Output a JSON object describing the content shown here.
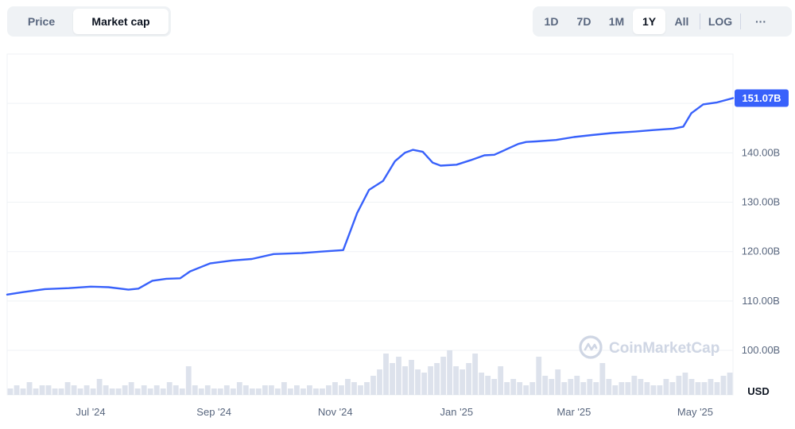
{
  "toolbar": {
    "left_tabs": [
      {
        "label": "Price",
        "active": false
      },
      {
        "label": "Market cap",
        "active": true
      }
    ],
    "range_tabs": [
      {
        "label": "1D",
        "active": false
      },
      {
        "label": "7D",
        "active": false
      },
      {
        "label": "1M",
        "active": false
      },
      {
        "label": "1Y",
        "active": true
      },
      {
        "label": "All",
        "active": false
      }
    ],
    "log_label": "LOG",
    "more_label": "···"
  },
  "watermark": {
    "text": "CoinMarketCap",
    "icon": "coinmarketcap-logo-icon"
  },
  "colors": {
    "line": "#3861fb",
    "volume": "#cfd6e4",
    "grid": "#eff2f5",
    "tag": "#3861fb"
  },
  "chart_data": {
    "type": "line",
    "currency": "USD",
    "current_value_label": "151.07B",
    "ylim": [
      91,
      160
    ],
    "y_ticks": [
      100,
      110,
      120,
      130,
      140
    ],
    "y_tick_labels": [
      "100.00B",
      "110.00B",
      "120.00B",
      "130.00B",
      "140.00B"
    ],
    "x_ticks": [
      "2024-07-01",
      "2024-09-01",
      "2024-11-01",
      "2025-01-01",
      "2025-03-01",
      "2025-05-01"
    ],
    "x_tick_labels": [
      "Jul '24",
      "Sep '24",
      "Nov '24",
      "Jan '25",
      "Mar '25",
      "May '25"
    ],
    "x_range": [
      "2024-05-20",
      "2025-05-20"
    ],
    "grid": true,
    "series": [
      {
        "x": [
          "2024-05-20",
          "2024-05-28",
          "2024-06-08",
          "2024-06-20",
          "2024-07-01",
          "2024-07-10",
          "2024-07-20",
          "2024-07-25",
          "2024-08-01",
          "2024-08-08",
          "2024-08-15",
          "2024-08-20",
          "2024-08-30",
          "2024-09-10",
          "2024-09-20",
          "2024-10-01",
          "2024-10-15",
          "2024-10-25",
          "2024-11-05",
          "2024-11-08",
          "2024-11-12",
          "2024-11-18",
          "2024-11-25",
          "2024-12-01",
          "2024-12-06",
          "2024-12-10",
          "2024-12-15",
          "2024-12-20",
          "2024-12-24",
          "2025-01-01",
          "2025-01-08",
          "2025-01-15",
          "2025-01-20",
          "2025-02-01",
          "2025-02-05",
          "2025-02-10",
          "2025-02-20",
          "2025-03-01",
          "2025-03-10",
          "2025-03-20",
          "2025-04-01",
          "2025-04-10",
          "2025-04-20",
          "2025-04-25",
          "2025-04-29",
          "2025-05-05",
          "2025-05-12",
          "2025-05-20"
        ],
        "y": [
          111.3,
          111.8,
          112.4,
          112.6,
          112.9,
          112.8,
          112.3,
          112.5,
          114.1,
          114.5,
          114.6,
          116.0,
          117.6,
          118.2,
          118.5,
          119.5,
          119.7,
          120.0,
          120.3,
          123.5,
          127.8,
          132.5,
          134.3,
          138.3,
          140.0,
          140.6,
          140.2,
          138.0,
          137.4,
          137.6,
          138.5,
          139.5,
          139.6,
          141.8,
          142.2,
          142.3,
          142.6,
          143.2,
          143.6,
          144.0,
          144.3,
          144.6,
          144.9,
          145.3,
          148.0,
          149.8,
          150.2,
          151.07
        ]
      }
    ],
    "volume_bars": [
      2,
      3,
      2,
      4,
      2,
      3,
      3,
      2,
      2,
      4,
      3,
      2,
      3,
      2,
      5,
      3,
      2,
      2,
      3,
      4,
      2,
      3,
      2,
      3,
      2,
      4,
      3,
      2,
      9,
      3,
      2,
      3,
      2,
      2,
      3,
      2,
      4,
      3,
      2,
      2,
      3,
      3,
      2,
      4,
      2,
      3,
      2,
      3,
      2,
      2,
      3,
      4,
      3,
      5,
      4,
      3,
      4,
      6,
      8,
      13,
      10,
      12,
      9,
      11,
      8,
      7,
      9,
      10,
      12,
      14,
      9,
      8,
      10,
      13,
      7,
      6,
      5,
      9,
      4,
      5,
      4,
      3,
      4,
      12,
      6,
      5,
      8,
      4,
      5,
      6,
      4,
      5,
      4,
      10,
      5,
      3,
      4,
      4,
      6,
      5,
      4,
      3,
      3,
      5,
      4,
      6,
      7,
      5,
      4,
      4,
      5,
      4,
      6,
      7
    ]
  }
}
